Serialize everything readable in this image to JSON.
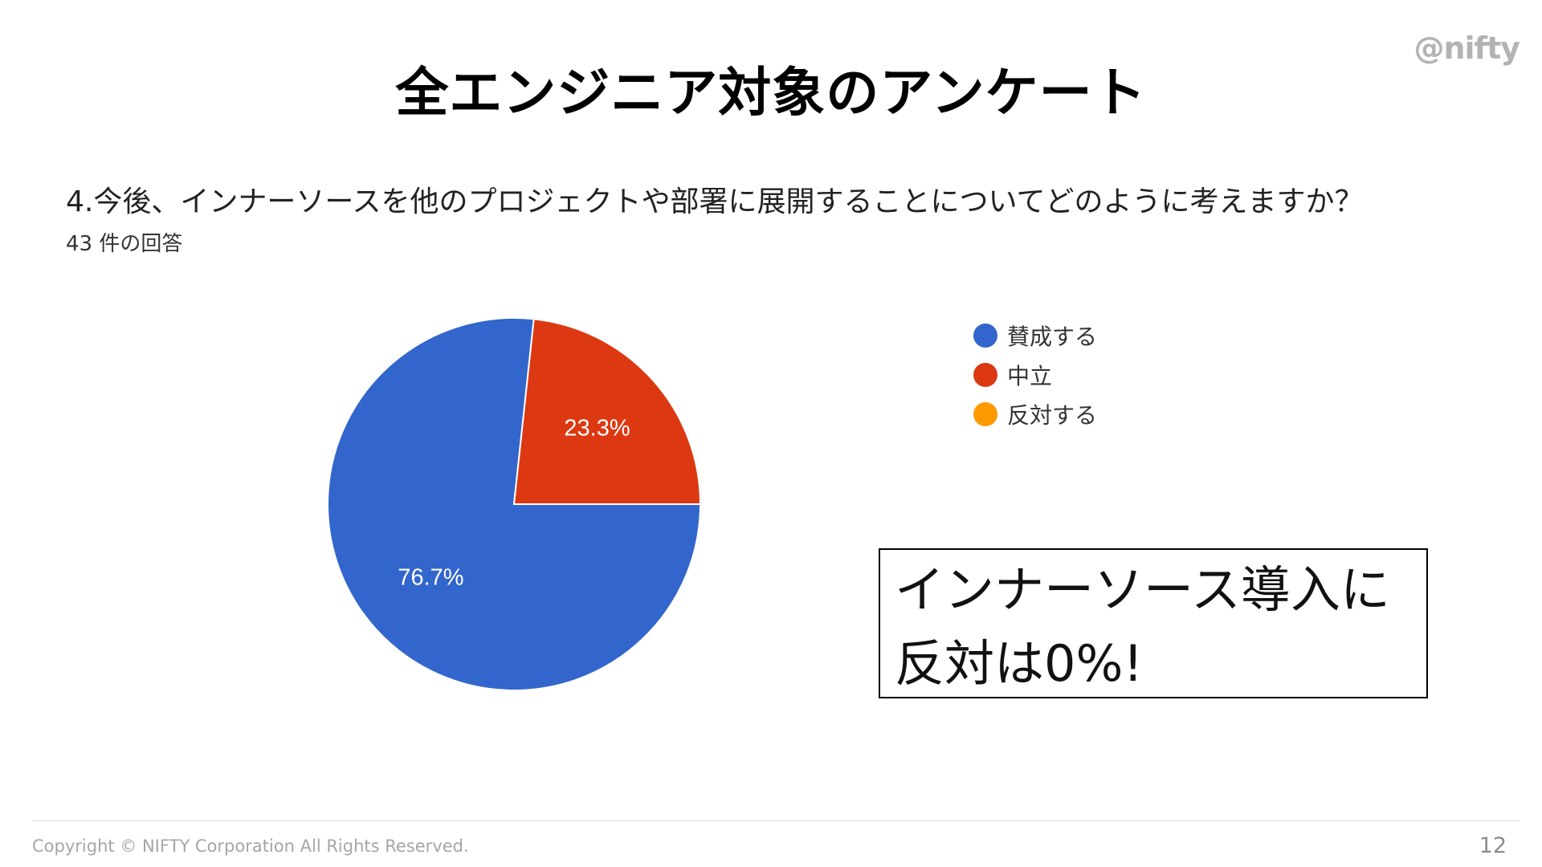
{
  "logo": "@nifty",
  "slide": {
    "title": "全エンジニア対象のアンケート",
    "question": "4.今後、インナーソースを他のプロジェクトや部署に展開することについてどのように考えますか？",
    "response_count": "43 件の回答"
  },
  "chart_data": {
    "type": "pie",
    "title": "",
    "categories": [
      "賛成する",
      "中立",
      "反対する"
    ],
    "values": [
      76.7,
      23.3,
      0
    ],
    "value_labels": [
      "76.7%",
      "23.3%",
      ""
    ],
    "colors": [
      "#3366cc",
      "#dc3912",
      "#ff9900"
    ],
    "legend_position": "right"
  },
  "callout": {
    "line1": "インナーソース導入に",
    "line2": "反対は0%!"
  },
  "footer": {
    "copyright": "Copyright © NIFTY Corporation All Rights Reserved.",
    "page_number": "12"
  }
}
